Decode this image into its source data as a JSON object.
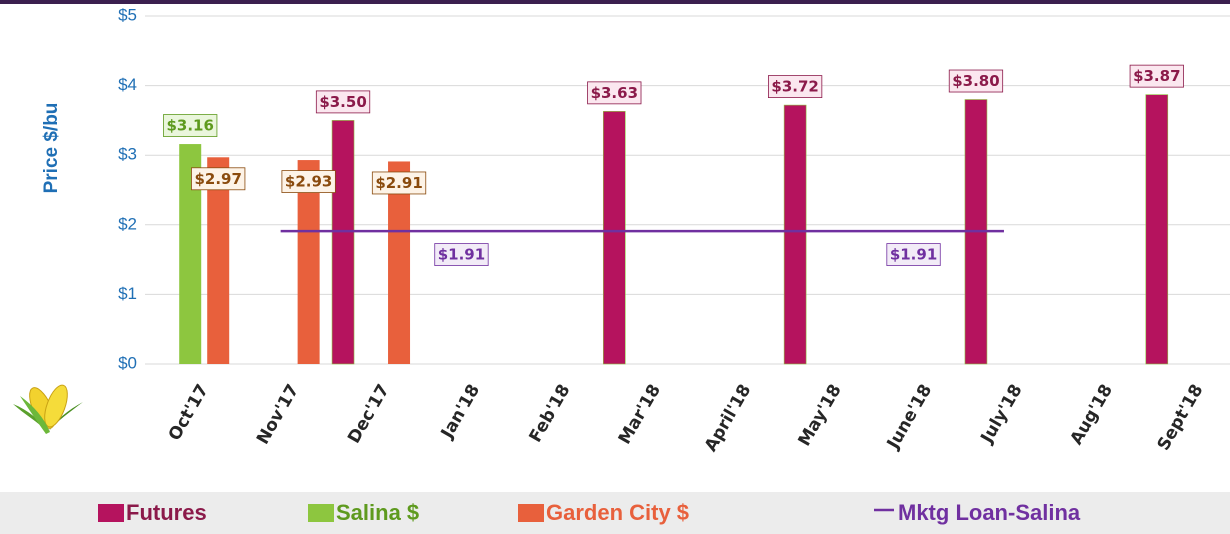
{
  "chart_data": {
    "type": "bar",
    "y_label": "Price $/bu",
    "categories": [
      "Oct'17",
      "Nov'17",
      "Dec'17",
      "Jan'18",
      "Feb'18",
      "Mar'18",
      "April'18",
      "May'18",
      "June'18",
      "July'18",
      "Aug'18",
      "Sept'18"
    ],
    "series": [
      {
        "name": "Futures",
        "type": "bar",
        "color": "#b5135e",
        "text_color": "#8b1a4a",
        "values": [
          null,
          null,
          3.5,
          null,
          null,
          3.63,
          null,
          3.72,
          null,
          3.8,
          null,
          3.87
        ],
        "value_labels": [
          null,
          null,
          "$3.50",
          null,
          null,
          "$3.63",
          null,
          "$3.72",
          null,
          "$3.80",
          null,
          "$3.87"
        ]
      },
      {
        "name": "Salina $",
        "type": "bar",
        "color": "#8dc63f",
        "text_color": "#5e9a1e",
        "values": [
          3.16,
          null,
          null,
          null,
          null,
          null,
          null,
          null,
          null,
          null,
          null,
          null
        ],
        "value_labels": [
          "$3.16",
          null,
          null,
          null,
          null,
          null,
          null,
          null,
          null,
          null,
          null,
          null
        ]
      },
      {
        "name": "Garden City $",
        "type": "bar",
        "color": "#e8603c",
        "text_color": "#e8603c",
        "values": [
          2.97,
          2.93,
          2.91,
          null,
          null,
          null,
          null,
          null,
          null,
          null,
          null,
          null
        ],
        "value_labels": [
          "$2.97",
          "$2.93",
          "$2.91",
          null,
          null,
          null,
          null,
          null,
          null,
          null,
          null,
          null
        ]
      },
      {
        "name": "Mktg Loan-Salina",
        "type": "line",
        "color": "#7030a0",
        "text_color": "#7030a0",
        "values": [
          null,
          1.91,
          1.91,
          1.91,
          1.91,
          1.91,
          1.91,
          1.91,
          1.91,
          1.91,
          null,
          null
        ],
        "value_labels": [
          null,
          null,
          null,
          "$1.91",
          null,
          null,
          null,
          null,
          "$1.91",
          null,
          null,
          null
        ]
      }
    ],
    "ylim": [
      0,
      5
    ],
    "yticks": [
      {
        "value": 0,
        "label": "$0"
      },
      {
        "value": 1,
        "label": "$1"
      },
      {
        "value": 2,
        "label": "$2"
      },
      {
        "value": 3,
        "label": "$3"
      },
      {
        "value": 4,
        "label": "$4"
      },
      {
        "value": 5,
        "label": "$5"
      }
    ],
    "grid": true,
    "legend": "bottom"
  }
}
